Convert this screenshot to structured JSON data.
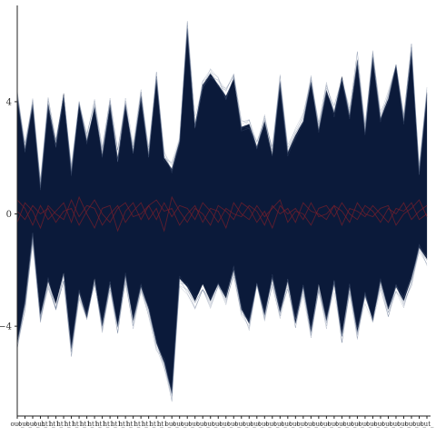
{
  "chart_data": {
    "type": "line",
    "subtype": "parallel-coordinates",
    "title": "",
    "xlabel": "",
    "ylabel": "",
    "ylim": [
      -7.2,
      7.3
    ],
    "yticks": [
      -4,
      0,
      4
    ],
    "grid": false,
    "legend": "none",
    "colors": {
      "background_series": "#0b1a3a",
      "highlight_series": "#7a1f2b",
      "axis": "#222222"
    },
    "categories": [
      "out_",
      "out_",
      "out_",
      "out_",
      "ht1_",
      "ht1_",
      "ht1_",
      "ht1_",
      "ht1_",
      "ht1_",
      "ht1_",
      "ht1_",
      "ht1_",
      "ht1_",
      "ht1_",
      "ht1_",
      "ht1_",
      "ht1_",
      "ht1_",
      "ht1_",
      "out_",
      "out_",
      "out_",
      "out_",
      "out_",
      "out_",
      "out_",
      "out_",
      "out_",
      "out_",
      "out_",
      "out_",
      "out_",
      "out_",
      "out_",
      "out_",
      "out_",
      "out_",
      "out_",
      "out_",
      "out_",
      "out_",
      "out_",
      "out_",
      "out_",
      "out_",
      "out_",
      "out_",
      "out_",
      "out_",
      "out_",
      "out_",
      "out_",
      "out_"
    ],
    "envelope": {
      "upper": [
        4.2,
        2.3,
        3.9,
        1.0,
        3.9,
        2.5,
        4.3,
        1.5,
        3.9,
        2.6,
        3.8,
        2.1,
        3.9,
        2.0,
        3.9,
        2.2,
        4.2,
        2.1,
        4.8,
        2.0,
        1.6,
        2.6,
        6.6,
        3.2,
        4.6,
        5.0,
        4.6,
        4.2,
        4.8,
        3.1,
        3.2,
        2.4,
        3.3,
        2.1,
        4.7,
        2.2,
        2.8,
        3.3,
        4.7,
        3.0,
        4.4,
        3.6,
        4.9,
        3.5,
        5.5,
        2.9,
        5.6,
        3.4,
        4.1,
        5.3,
        3.3,
        5.8,
        1.5,
        4.3
      ],
      "lower": [
        -4.6,
        -3.2,
        -0.8,
        -3.6,
        -2.4,
        -3.2,
        -2.1,
        -4.8,
        -2.8,
        -3.7,
        -2.3,
        -4.0,
        -2.5,
        -4.0,
        -2.2,
        -3.8,
        -2.6,
        -3.4,
        -4.6,
        -5.3,
        -6.4,
        -2.3,
        -2.6,
        -3.1,
        -2.5,
        -3.1,
        -2.5,
        -3.0,
        -2.0,
        -3.4,
        -3.9,
        -2.5,
        -3.6,
        -2.3,
        -3.5,
        -2.4,
        -3.9,
        -2.6,
        -4.2,
        -2.5,
        -3.8,
        -2.5,
        -4.3,
        -2.6,
        -4.2,
        -2.9,
        -3.8,
        -2.4,
        -3.4,
        -2.6,
        -3.1,
        -2.3,
        -1.2,
        -1.6
      ]
    },
    "series": [
      {
        "role": "highlight",
        "values": [
          0.5,
          0.2,
          -0.4,
          0.3,
          -0.2,
          0.1,
          0.4,
          -0.3,
          0.6,
          0.0,
          -0.5,
          0.2,
          0.3,
          -0.6,
          0.1,
          0.4,
          -0.2,
          0.3,
          0.5,
          0.1,
          0.2,
          -0.4,
          0.0,
          0.3,
          -0.3,
          0.2,
          0.1,
          -0.5,
          0.4,
          0.0,
          -0.2,
          0.3,
          -0.1,
          0.2,
          0.5,
          -0.3,
          0.1,
          0.0,
          -0.4,
          0.2,
          0.3,
          -0.1,
          0.4,
          0.0,
          -0.2,
          0.3,
          0.1,
          -0.3,
          0.2,
          0.0,
          0.4,
          -0.2,
          0.1,
          0.3
        ]
      },
      {
        "role": "highlight",
        "values": [
          -0.3,
          0.4,
          0.1,
          -0.5,
          0.3,
          0.0,
          -0.2,
          0.5,
          -0.1,
          0.3,
          0.2,
          -0.4,
          0.0,
          0.3,
          -0.3,
          0.1,
          0.4,
          -0.2,
          0.2,
          -0.6,
          0.6,
          0.1,
          -0.3,
          0.2,
          0.0,
          -0.4,
          0.3,
          0.1,
          -0.2,
          0.4,
          0.2,
          -0.3,
          0.1,
          -0.5,
          0.3,
          0.0,
          0.2,
          -0.2,
          0.4,
          -0.1,
          0.0,
          0.3,
          -0.4,
          0.2,
          0.1,
          -0.1,
          0.3,
          0.0,
          -0.3,
          0.2,
          0.1,
          0.4,
          -0.2,
          0.0
        ]
      },
      {
        "role": "highlight",
        "values": [
          0.1,
          -0.2,
          0.3,
          0.0,
          0.2,
          -0.3,
          0.1,
          0.2,
          -0.4,
          0.1,
          0.5,
          0.0,
          -0.3,
          0.2,
          0.4,
          -0.1,
          0.0,
          0.3,
          -0.2,
          0.4,
          -0.1,
          0.3,
          0.2,
          -0.2,
          0.4,
          0.1,
          -0.3,
          0.2,
          0.0,
          -0.1,
          0.3,
          0.1,
          -0.4,
          0.3,
          0.0,
          0.2,
          -0.3,
          0.4,
          0.1,
          0.0,
          -0.2,
          0.3,
          0.1,
          -0.3,
          0.4,
          0.0,
          -0.1,
          0.2,
          0.3,
          -0.4,
          0.0,
          0.2,
          0.5,
          -0.1
        ]
      }
    ]
  }
}
